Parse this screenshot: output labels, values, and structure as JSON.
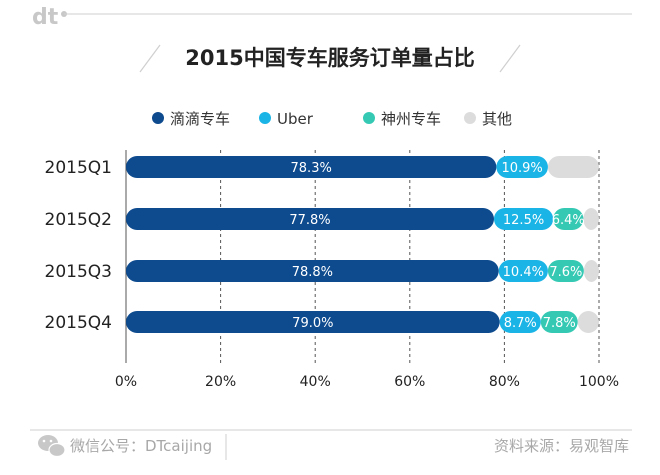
{
  "header": {
    "logo_text": "dt"
  },
  "footer": {
    "wechat_label": "微信公号：DTcaijing",
    "source_label": "资料来源：易观智库"
  },
  "colors": {
    "didi": "#0d4a8e",
    "uber": "#1ab4e6",
    "shenzhou": "#35c9b4",
    "other": "#dcdcdc",
    "gridline": "#555555",
    "decor_line": "#cfcfcf"
  },
  "chart_data": {
    "type": "bar",
    "orientation": "horizontal",
    "stacked": true,
    "title": "2015中国专车服务订单量占比",
    "categories": [
      "2015Q1",
      "2015Q2",
      "2015Q3",
      "2015Q4"
    ],
    "series": [
      {
        "name": "滴滴专车",
        "color": "#0d4a8e",
        "values": [
          78.3,
          77.8,
          78.8,
          79.0
        ],
        "labels": [
          "78.3%",
          "77.8%",
          "78.8%",
          "79.0%"
        ]
      },
      {
        "name": "Uber",
        "color": "#1ab4e6",
        "values": [
          10.9,
          12.5,
          10.4,
          8.7
        ],
        "labels": [
          "10.9%",
          "12.5%",
          "10.4%",
          "8.7%"
        ]
      },
      {
        "name": "神州专车",
        "color": "#35c9b4",
        "values": [
          0,
          6.4,
          7.6,
          7.8
        ],
        "labels": [
          "",
          "6.4%",
          "7.6%",
          "7.8%"
        ]
      },
      {
        "name": "其他",
        "color": "#dcdcdc",
        "values": [
          10.8,
          3.3,
          3.2,
          4.5
        ],
        "labels": [
          "",
          "",
          "",
          ""
        ]
      }
    ],
    "xlim": [
      0,
      100
    ],
    "xticks": [
      "0%",
      "20%",
      "40%",
      "60%",
      "80%",
      "100%"
    ],
    "xtick_values": [
      0,
      20,
      40,
      60,
      80,
      100
    ],
    "grid": true,
    "legend_position": "top"
  }
}
